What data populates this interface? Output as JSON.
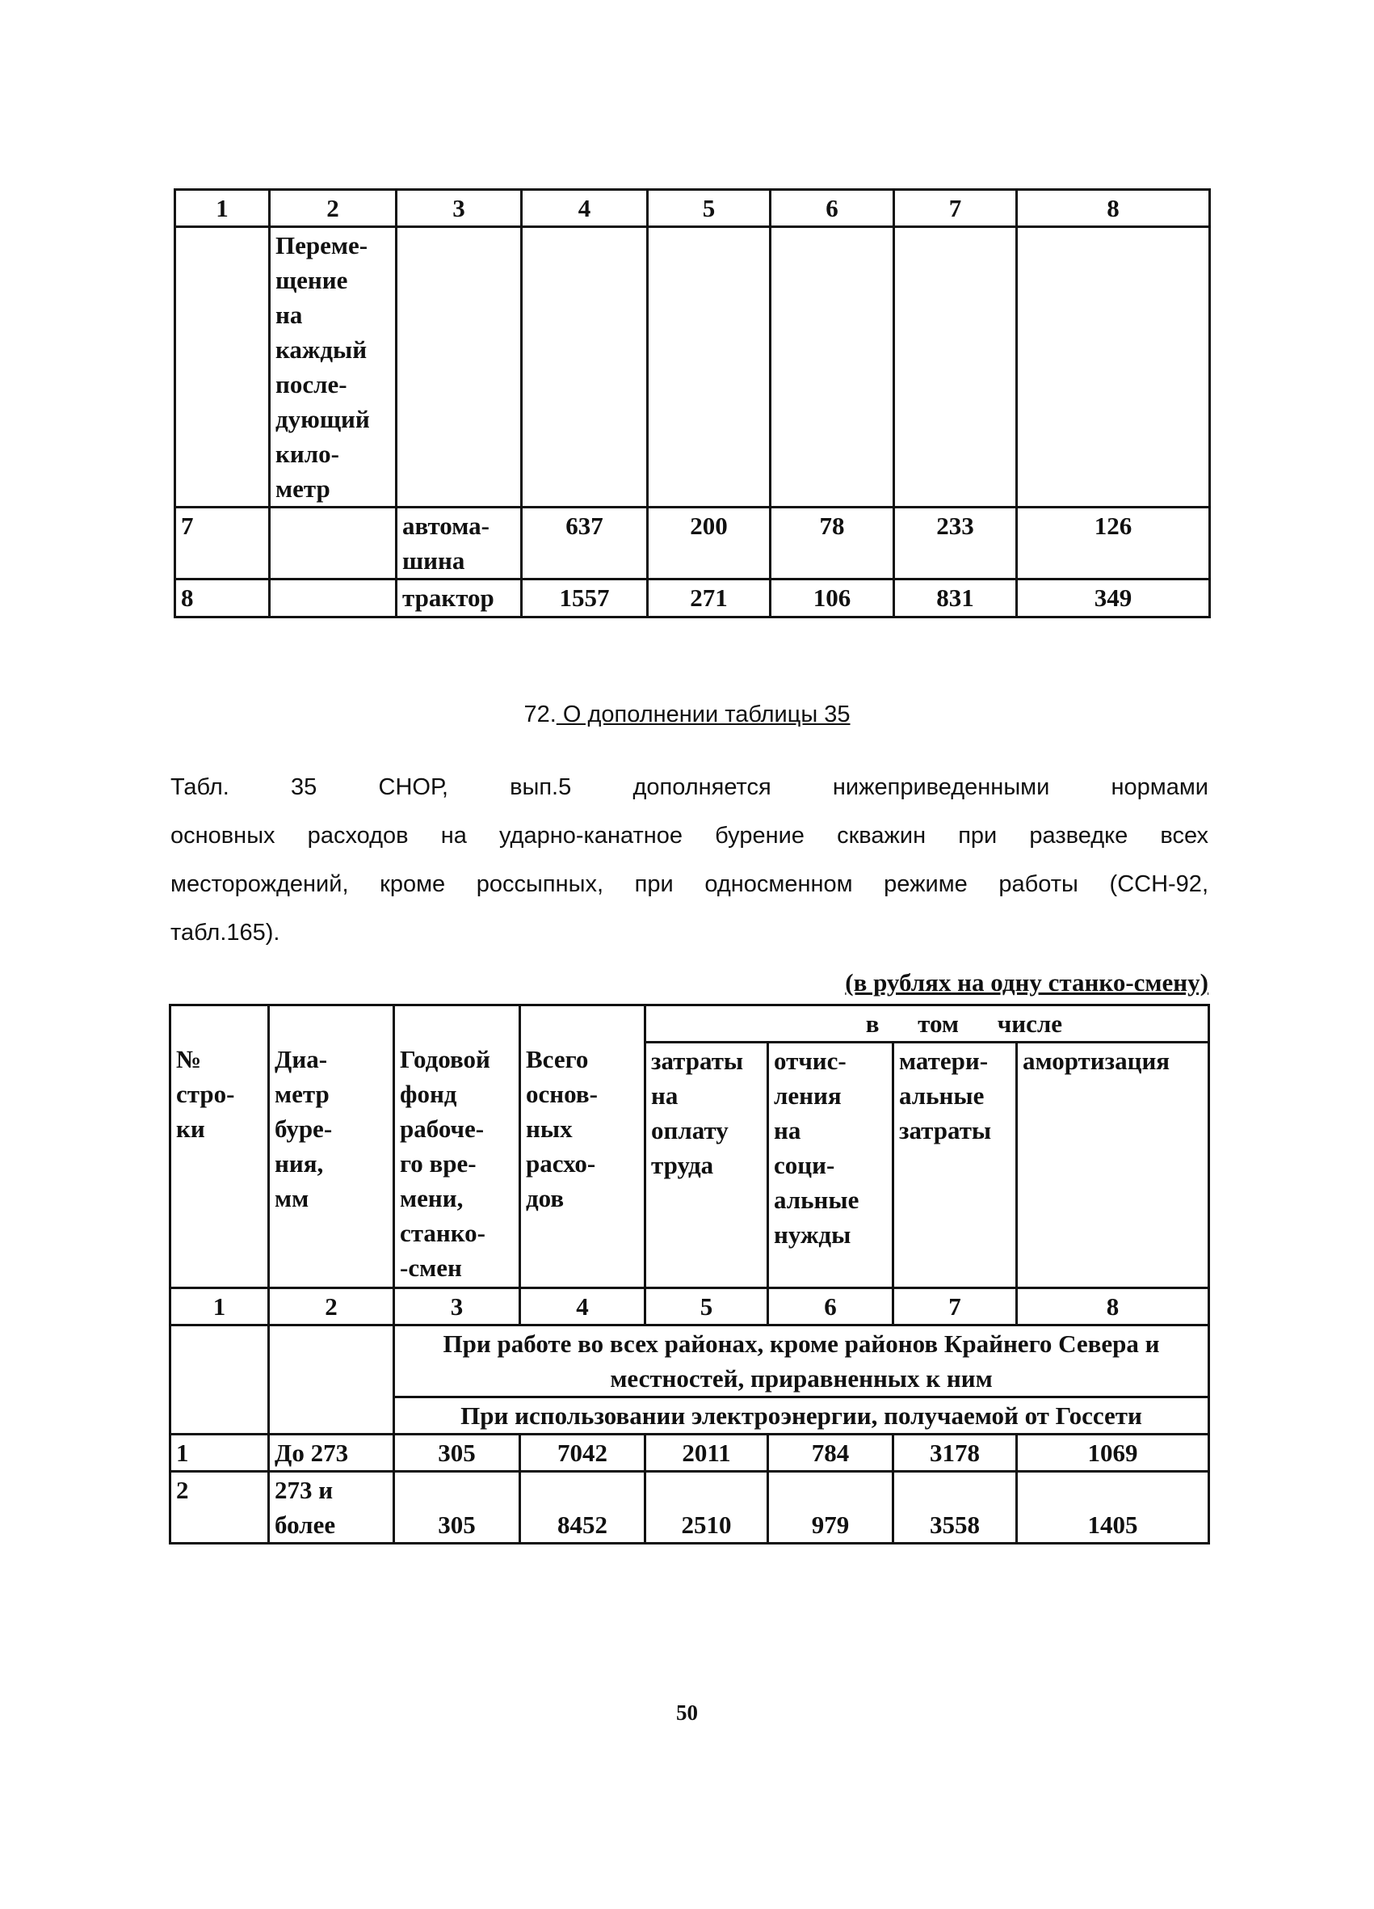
{
  "top_table": {
    "col_numbers": [
      "1",
      "2",
      "3",
      "4",
      "5",
      "6",
      "7",
      "8"
    ],
    "rows": [
      {
        "cells": [
          "",
          "Переме-\nщение\nна\nкаждый\nпосле-\nдующий\nкило-\nметр",
          "",
          "",
          "",
          "",
          "",
          ""
        ]
      },
      {
        "cells": [
          "7",
          "",
          "автома-\nшина",
          "637",
          "200",
          "78",
          "233",
          "126"
        ]
      },
      {
        "cells": [
          "8",
          "",
          "трактор",
          "1557",
          "271",
          "106",
          "831",
          "349"
        ]
      }
    ]
  },
  "heading": {
    "number": "72.",
    "title": " О дополнении таблицы 35"
  },
  "paragraph_lines": [
    "Табл. 35 СНОР, вып.5 дополняется нижеприведенными нормами",
    "основных расходов на ударно-канатное бурение скважин при разведке всех",
    "месторождений, кроме россыпных, при односменном режиме работы (ССН-92,",
    "табл.165)."
  ],
  "unit_note": "(в рублях на одну станко-смену)",
  "bottom_table": {
    "group_header": "в том числе",
    "headers": [
      "№\nстро-\nки",
      "Диа-\nметр\nбуре-\nния,\nмм",
      "Годовой\nфонд\nрабоче-\nго вре-\nмени,\nстанко-\n-смен",
      "Всего\nоснов-\nных\nрасхо-\nдов",
      "затраты\nна\nоплату\nтруда",
      "отчис-\nления\nна\nсоци-\nальные\nнужды",
      "матери-\nальные\nзатраты",
      "амортизация"
    ],
    "col_numbers": [
      "1",
      "2",
      "3",
      "4",
      "5",
      "6",
      "7",
      "8"
    ],
    "section_1": "При работе во всех районах, кроме районов Крайнего Севера и местностей, приравненных к ним",
    "section_2": "При использовании электроэнергии, получаемой от Госсети",
    "rows": [
      {
        "cells": [
          "1",
          "До 273",
          "305",
          "7042",
          "2011",
          "784",
          "3178",
          "1069"
        ]
      },
      {
        "cells": [
          "2",
          "273 и\nболее",
          "305",
          "8452",
          "2510",
          "979",
          "3558",
          "1405"
        ]
      }
    ]
  },
  "page_number": "50"
}
